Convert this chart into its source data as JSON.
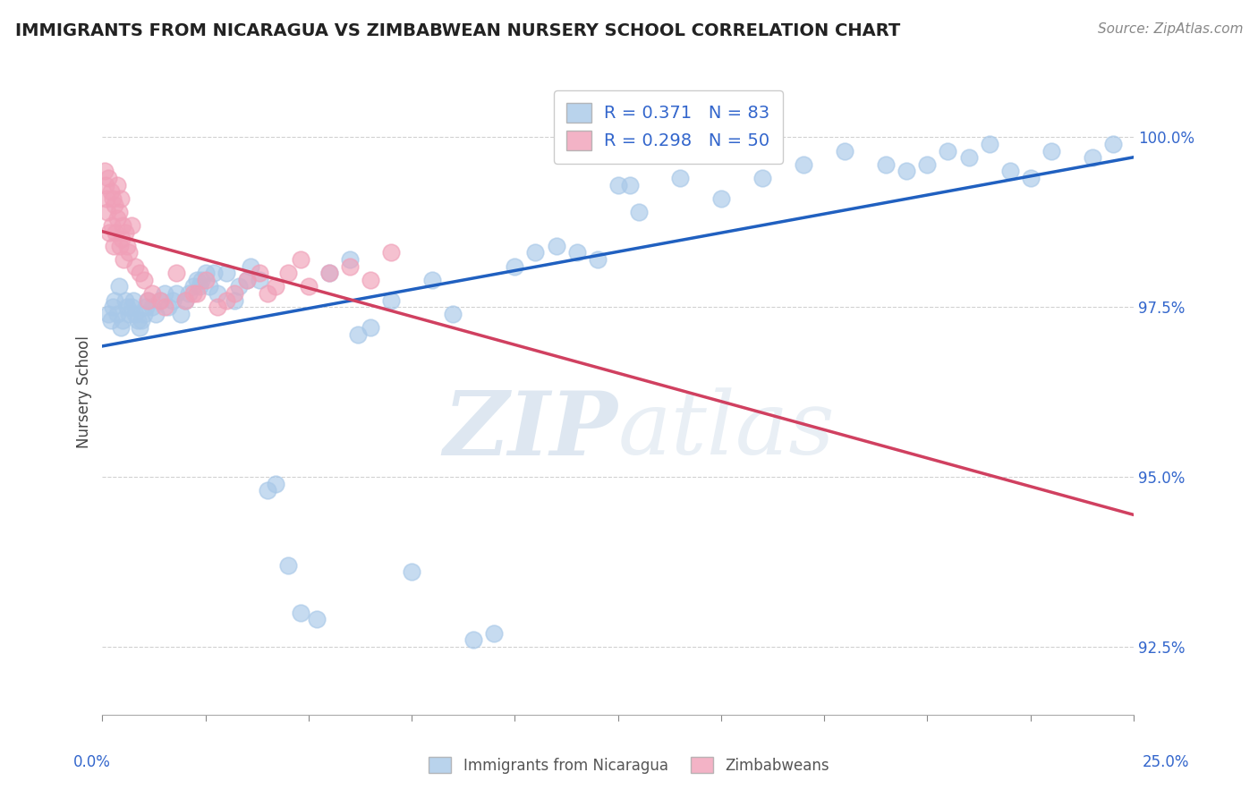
{
  "title": "IMMIGRANTS FROM NICARAGUA VS ZIMBABWEAN NURSERY SCHOOL CORRELATION CHART",
  "source": "Source: ZipAtlas.com",
  "ylabel": "Nursery School",
  "xlim": [
    0.0,
    25.0
  ],
  "ylim": [
    91.5,
    101.0
  ],
  "yticks": [
    92.5,
    95.0,
    97.5,
    100.0
  ],
  "ytick_labels": [
    "92.5%",
    "95.0%",
    "97.5%",
    "100.0%"
  ],
  "xticks": [
    0,
    2.5,
    5.0,
    7.5,
    10.0,
    12.5,
    15.0,
    17.5,
    20.0,
    22.5,
    25.0
  ],
  "blue_color": "#a8c8e8",
  "pink_color": "#f0a0b8",
  "blue_line_color": "#2060c0",
  "pink_line_color": "#d04060",
  "blue_R": 0.371,
  "blue_N": 83,
  "pink_R": 0.298,
  "pink_N": 50,
  "blue_scatter_x": [
    0.15,
    0.2,
    0.25,
    0.3,
    0.35,
    0.4,
    0.45,
    0.5,
    0.55,
    0.6,
    0.65,
    0.7,
    0.75,
    0.8,
    0.85,
    0.9,
    0.95,
    1.0,
    1.05,
    1.1,
    1.2,
    1.3,
    1.4,
    1.5,
    1.6,
    1.7,
    1.8,
    1.9,
    2.0,
    2.1,
    2.2,
    2.3,
    2.35,
    2.4,
    2.5,
    2.6,
    2.7,
    2.8,
    3.0,
    3.2,
    3.3,
    3.5,
    3.6,
    3.8,
    4.0,
    4.5,
    4.8,
    5.5,
    6.0,
    6.5,
    7.0,
    8.0,
    9.0,
    10.0,
    11.0,
    11.5,
    12.0,
    12.5,
    13.0,
    14.0,
    15.0,
    16.0,
    17.0,
    18.0,
    19.0,
    20.0,
    21.0,
    22.0,
    23.0,
    24.0,
    24.5,
    20.5,
    21.5,
    22.5,
    19.5,
    12.8,
    7.5,
    8.5,
    9.5,
    10.5,
    5.2,
    6.2,
    4.2
  ],
  "blue_scatter_y": [
    97.4,
    97.3,
    97.5,
    97.6,
    97.4,
    97.8,
    97.2,
    97.3,
    97.6,
    97.5,
    97.4,
    97.5,
    97.6,
    97.4,
    97.3,
    97.2,
    97.3,
    97.4,
    97.5,
    97.6,
    97.5,
    97.4,
    97.6,
    97.7,
    97.5,
    97.6,
    97.7,
    97.4,
    97.6,
    97.7,
    97.8,
    97.9,
    97.8,
    97.9,
    98.0,
    97.8,
    98.0,
    97.7,
    98.0,
    97.6,
    97.8,
    97.9,
    98.1,
    97.9,
    94.8,
    93.7,
    93.0,
    98.0,
    98.2,
    97.2,
    97.6,
    97.9,
    92.6,
    98.1,
    98.4,
    98.3,
    98.2,
    99.3,
    98.9,
    99.4,
    99.1,
    99.4,
    99.6,
    99.8,
    99.6,
    99.6,
    99.7,
    99.5,
    99.8,
    99.7,
    99.9,
    99.8,
    99.9,
    99.4,
    99.5,
    99.3,
    93.6,
    97.4,
    92.7,
    98.3,
    92.9,
    97.1,
    94.9
  ],
  "pink_scatter_x": [
    0.05,
    0.07,
    0.1,
    0.12,
    0.15,
    0.17,
    0.2,
    0.22,
    0.25,
    0.27,
    0.3,
    0.32,
    0.35,
    0.37,
    0.4,
    0.42,
    0.45,
    0.47,
    0.5,
    0.52,
    0.55,
    0.6,
    0.65,
    0.7,
    0.8,
    0.9,
    1.0,
    1.1,
    1.2,
    1.5,
    1.8,
    2.0,
    2.2,
    2.5,
    2.8,
    3.0,
    3.5,
    4.0,
    4.5,
    5.0,
    5.5,
    6.0,
    6.5,
    7.0,
    3.2,
    3.8,
    4.2,
    4.8,
    2.3,
    1.4
  ],
  "pink_scatter_y": [
    99.5,
    99.3,
    99.1,
    98.9,
    99.4,
    98.6,
    99.2,
    98.7,
    99.1,
    98.4,
    99.0,
    98.6,
    99.3,
    98.8,
    98.9,
    98.4,
    99.1,
    98.5,
    98.7,
    98.2,
    98.6,
    98.4,
    98.3,
    98.7,
    98.1,
    98.0,
    97.9,
    97.6,
    97.7,
    97.5,
    98.0,
    97.6,
    97.7,
    97.9,
    97.5,
    97.6,
    97.9,
    97.7,
    98.0,
    97.8,
    98.0,
    98.1,
    97.9,
    98.3,
    97.7,
    98.0,
    97.8,
    98.2,
    97.7,
    97.6
  ]
}
